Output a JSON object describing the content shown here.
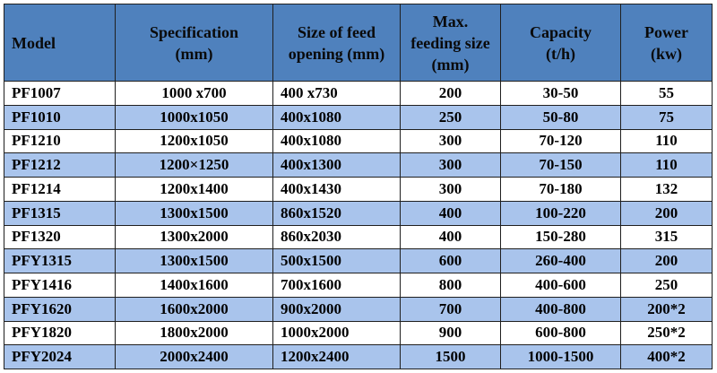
{
  "table": {
    "headers": [
      [
        "Model"
      ],
      [
        "Specification",
        "(mm)"
      ],
      [
        "Size of feed",
        "opening (mm)"
      ],
      [
        "Max.",
        "feeding size",
        "(mm)"
      ],
      [
        "Capacity",
        "(t/h)"
      ],
      [
        "Power",
        "(kw)"
      ]
    ],
    "rows": [
      [
        "PF1007",
        "1000 x700",
        "400 x730",
        "200",
        "30-50",
        "55"
      ],
      [
        "PF1010",
        "1000x1050",
        "400x1080",
        "250",
        "50-80",
        "75"
      ],
      [
        "PF1210",
        "1200x1050",
        "400x1080",
        "300",
        "70-120",
        "110"
      ],
      [
        "PF1212",
        "1200×1250",
        "400x1300",
        "300",
        "70-150",
        "110"
      ],
      [
        "PF1214",
        "1200x1400",
        "400x1430",
        "300",
        "70-180",
        "132"
      ],
      [
        "PF1315",
        "1300x1500",
        "860x1520",
        "400",
        "100-220",
        "200"
      ],
      [
        "PF1320",
        "1300x2000",
        "860x2030",
        "400",
        "150-280",
        "315"
      ],
      [
        "PFY1315",
        "1300x1500",
        "500x1500",
        "600",
        "260-400",
        "200"
      ],
      [
        "PFY1416",
        "1400x1600",
        "700x1600",
        "800",
        "400-600",
        "250"
      ],
      [
        "PFY1620",
        "1600x2000",
        "900x2000",
        "700",
        "400-800",
        "200*2"
      ],
      [
        "PFY1820",
        "1800x2000",
        "1000x2000",
        "900",
        "600-800",
        "250*2"
      ],
      [
        "PFY2024",
        "2000x2400",
        "1200x2400",
        "1500",
        "1000-1500",
        "400*2"
      ]
    ],
    "colors": {
      "header_bg": "#4f81bd",
      "row_alt_bg": "#a9c4ec",
      "row_bg": "#ffffff",
      "border": "#1f1f1f"
    }
  }
}
